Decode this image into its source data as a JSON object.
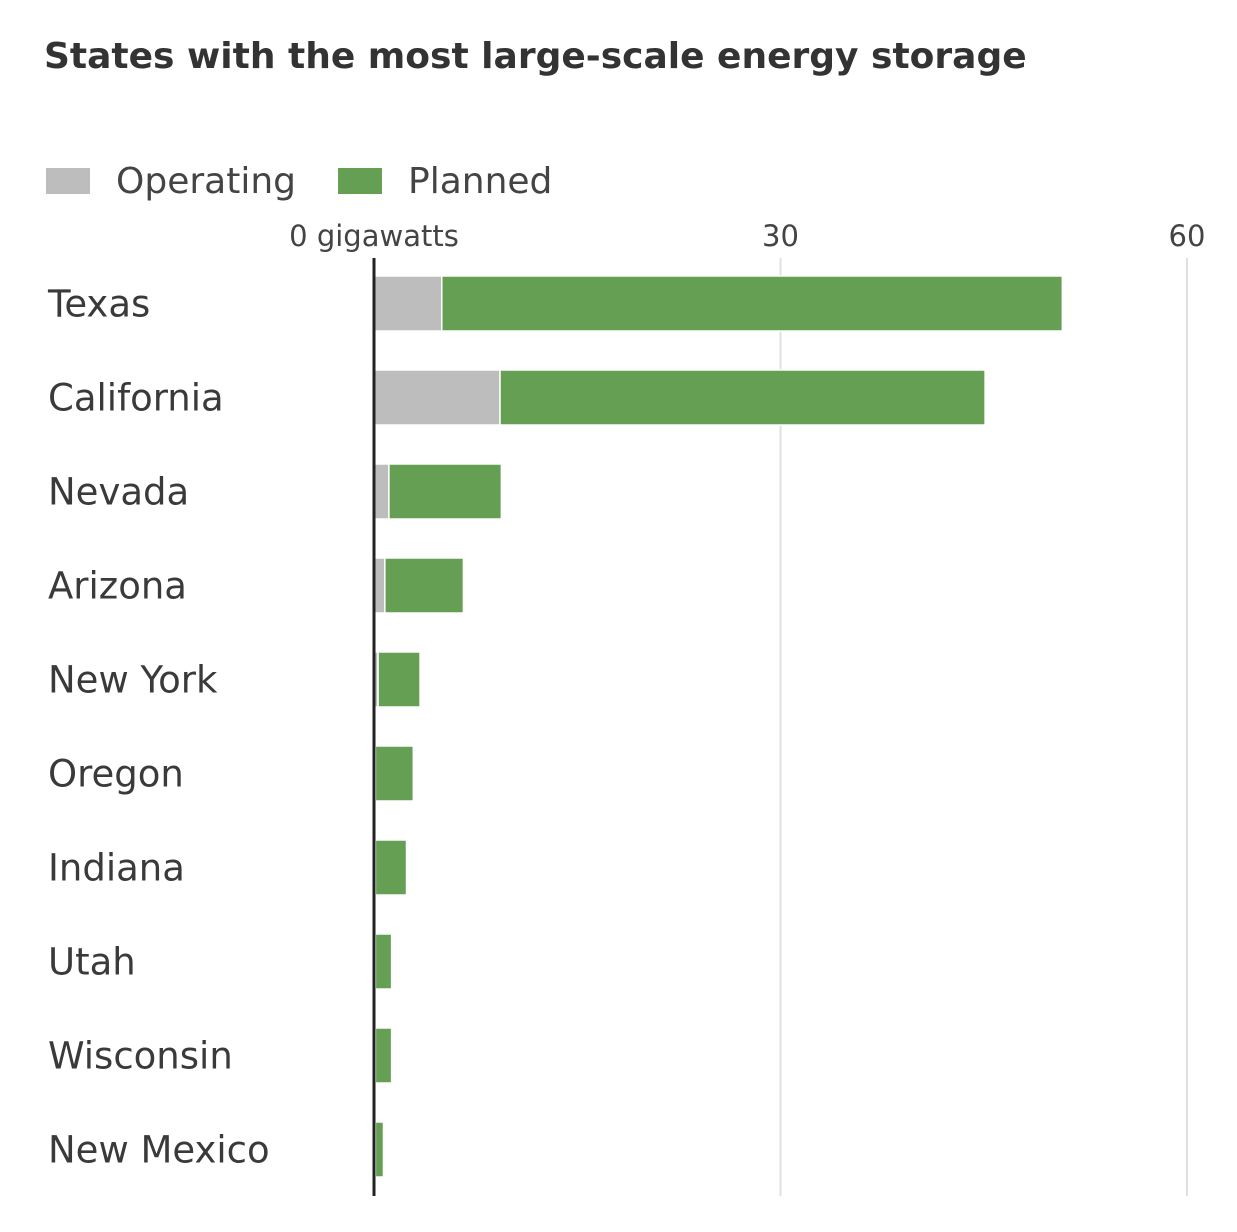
{
  "chart_data": {
    "type": "bar",
    "orientation": "horizontal",
    "stacked": true,
    "title": "States with the most large-scale energy storage",
    "xlabel": "",
    "ylabel": "",
    "x_unit": "gigawatts",
    "xlim": [
      0,
      60
    ],
    "x_ticks": [
      0,
      30,
      60
    ],
    "x_tick_labels": [
      "0 gigawatts",
      "30",
      "60"
    ],
    "grid": true,
    "legend_position": "top-left",
    "categories": [
      "Texas",
      "California",
      "Nevada",
      "Arizona",
      "New York",
      "Oregon",
      "Indiana",
      "Utah",
      "Wisconsin",
      "New Mexico"
    ],
    "series": [
      {
        "name": "Operating",
        "color": "#bdbdbd",
        "values": [
          5.0,
          9.3,
          1.1,
          0.8,
          0.3,
          0.1,
          0.1,
          0.1,
          0.1,
          0.1
        ]
      },
      {
        "name": "Planned",
        "color": "#659f54",
        "values": [
          45.8,
          35.8,
          8.3,
          5.8,
          3.1,
          2.8,
          2.3,
          1.2,
          1.2,
          0.6
        ]
      }
    ]
  }
}
